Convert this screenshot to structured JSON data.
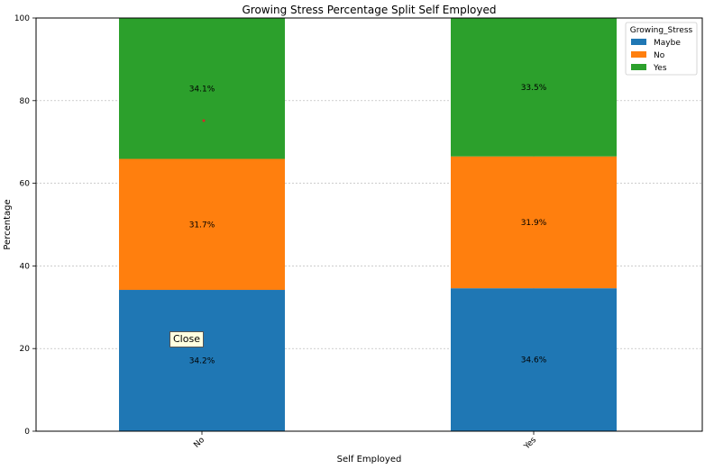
{
  "chart_data": {
    "type": "bar",
    "stacked": true,
    "title": "Growing Stress Percentage Split Self Employed",
    "xlabel": "Self Employed",
    "ylabel": "Percentage",
    "categories": [
      "No",
      "Yes"
    ],
    "ylim": [
      0,
      100
    ],
    "yticks": [
      0,
      20,
      40,
      60,
      80,
      100
    ],
    "grid": true,
    "legend": {
      "title": "Growing_Stress",
      "placement": "top-right"
    },
    "series": [
      {
        "name": "Maybe",
        "color": "#1f77b4",
        "values": [
          34.2,
          34.6
        ],
        "labels": [
          "34.2%",
          "34.6%"
        ]
      },
      {
        "name": "No",
        "color": "#ff7f0e",
        "values": [
          31.7,
          31.9
        ],
        "labels": [
          "31.7%",
          "31.9%"
        ]
      },
      {
        "name": "Yes",
        "color": "#2ca02c",
        "values": [
          34.1,
          33.5
        ],
        "labels": [
          "34.1%",
          "33.5%"
        ]
      }
    ]
  },
  "tooltip": {
    "label": "Close"
  }
}
